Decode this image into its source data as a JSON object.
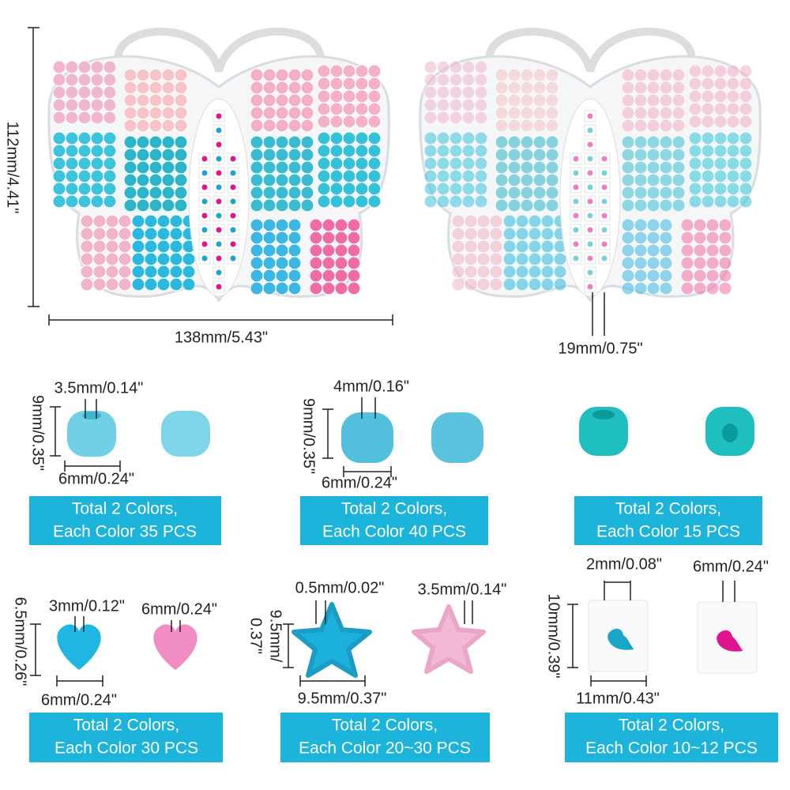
{
  "box": {
    "height": "112mm/4.41\"",
    "width": "138mm/5.43\"",
    "depth": "19mm/0.75\""
  },
  "panels": [
    {
      "sizes": [
        "3.5mm/0.14\"",
        "9mm/0.35\"",
        "6mm/0.24\""
      ],
      "caption": [
        "Total 2 Colors,",
        "Each Color 35 PCS"
      ]
    },
    {
      "sizes": [
        "4mm/0.16\"",
        "9mm/0.35\"",
        "6mm/0.24\""
      ],
      "caption": [
        "Total 2 Colors,",
        "Each Color 40 PCS"
      ]
    },
    {
      "sizes": [],
      "caption": [
        "Total 2 Colors,",
        "Each Color 15 PCS"
      ]
    },
    {
      "sizes": [
        "3mm/0.12\"",
        "6mm/0.24\"",
        "6.5mm/0.26\"",
        "6mm/0.24\""
      ],
      "caption": [
        "Total 2 Colors,",
        "Each Color 30 PCS"
      ]
    },
    {
      "sizes": [
        "0.5mm/0.02\"",
        "3.5mm/0.14\"",
        "9.5mm/",
        "0.37\"",
        "9.5mm/0.37\""
      ],
      "caption": [
        "Total 2 Colors,",
        "Each Color 20~30 PCS"
      ]
    },
    {
      "sizes": [
        "2mm/0.08\"",
        "6mm/0.24\"",
        "10mm/0.39\"",
        "11mm/0.43\""
      ],
      "caption": [
        "Total 2 Colors,",
        "Each Color 10~12 PCS"
      ]
    }
  ]
}
